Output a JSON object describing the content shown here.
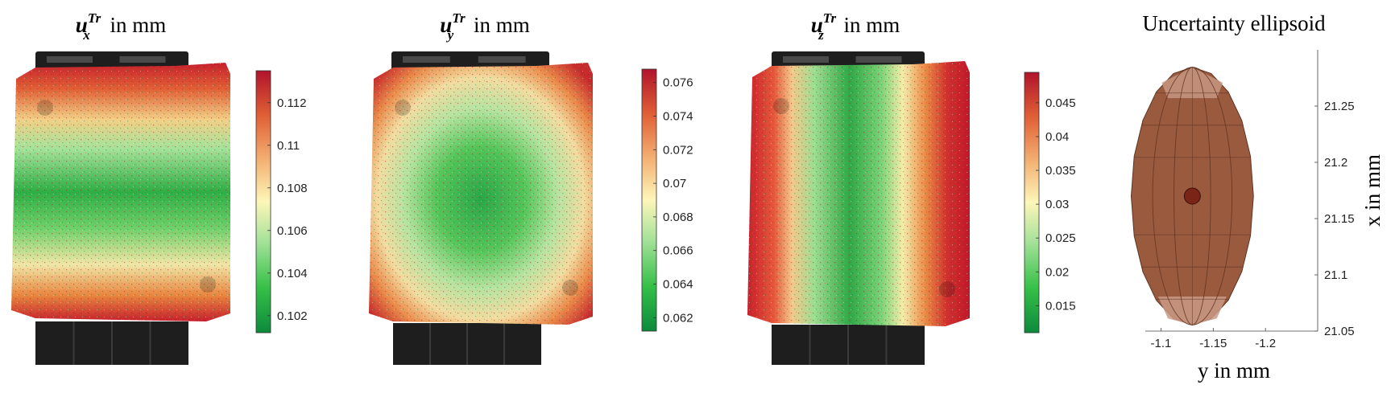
{
  "chart_data": [
    {
      "type": "heatmap",
      "title_var": "u",
      "title_sub": "x",
      "title_sup": "Tr",
      "title_rest": "in mm",
      "pattern": "horizontal-band",
      "colorbar": {
        "min": 0.1012,
        "max": 0.1135,
        "ticks": [
          0.102,
          0.104,
          0.106,
          0.108,
          0.11,
          0.112
        ],
        "tick_labels": [
          "0.102",
          "0.104",
          "0.106",
          "0.108",
          "0.11",
          "0.112"
        ]
      }
    },
    {
      "type": "heatmap",
      "title_var": "u",
      "title_sub": "y",
      "title_sup": "Tr",
      "title_rest": "in mm",
      "pattern": "radial",
      "colorbar": {
        "min": 0.0612,
        "max": 0.0768,
        "ticks": [
          0.062,
          0.064,
          0.066,
          0.068,
          0.07,
          0.072,
          0.074,
          0.076
        ],
        "tick_labels": [
          "0.062",
          "0.064",
          "0.066",
          "0.068",
          "0.07",
          "0.072",
          "0.074",
          "0.076"
        ]
      }
    },
    {
      "type": "heatmap",
      "title_var": "u",
      "title_sub": "z",
      "title_sup": "Tr",
      "title_rest": "in mm",
      "pattern": "vertical-band",
      "colorbar": {
        "min": 0.011,
        "max": 0.0495,
        "ticks": [
          0.015,
          0.02,
          0.025,
          0.03,
          0.035,
          0.04,
          0.045
        ],
        "tick_labels": [
          "0.015",
          "0.02",
          "0.025",
          "0.03",
          "0.035",
          "0.04",
          "0.045"
        ]
      }
    },
    {
      "type": "ellipsoid",
      "title": "Uncertainty ellipsoid",
      "xlabel": "y in mm",
      "ylabel": "x in mm",
      "x_direction": "reversed",
      "xlim": [
        -1.085,
        -1.25
      ],
      "ylim": [
        21.05,
        21.3
      ],
      "xticks": [
        -1.1,
        -1.15,
        -1.2
      ],
      "xtick_labels": [
        "-1.1",
        "-1.15",
        "-1.2"
      ],
      "yticks": [
        21.05,
        21.1,
        21.15,
        21.2,
        21.25
      ],
      "ytick_labels": [
        "21.05",
        "21.1",
        "21.15",
        "21.2",
        "21.25"
      ],
      "center": {
        "y": -1.13,
        "x": 21.17
      },
      "semi_axes": {
        "y": 0.0585,
        "x": 0.1145
      },
      "colors": {
        "fill": "#9a5a3e",
        "edge": "#5e3422",
        "cap": "#c99a86",
        "center": "#7a2418"
      }
    }
  ],
  "colors": {
    "colormap": [
      "#0c8a3c",
      "#35c047",
      "#a6e29a",
      "#fdf6b8",
      "#f3b072",
      "#e05f35",
      "#b0132b"
    ],
    "stand": "#1e1e1e"
  }
}
